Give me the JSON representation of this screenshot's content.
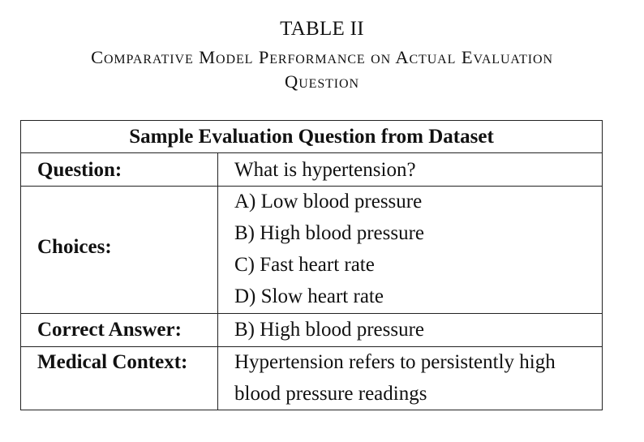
{
  "caption": {
    "label": "TABLE II",
    "title_lines": [
      "Comparative Model Performance on Actual Evaluation",
      "Question"
    ]
  },
  "table": {
    "header": "Sample Evaluation Question from Dataset",
    "question_label": "Question:",
    "question_value": "What is hypertension?",
    "choices_label": "Choices:",
    "choices": [
      "A) Low blood pressure",
      "B) High blood pressure",
      "C) Fast heart rate",
      "D) Slow heart rate"
    ],
    "answer_label": "Correct Answer:",
    "answer_value": "B) High blood pressure",
    "context_label": "Medical Context:",
    "context_lines": [
      "Hypertension refers to persistently high",
      "blood pressure readings"
    ]
  }
}
